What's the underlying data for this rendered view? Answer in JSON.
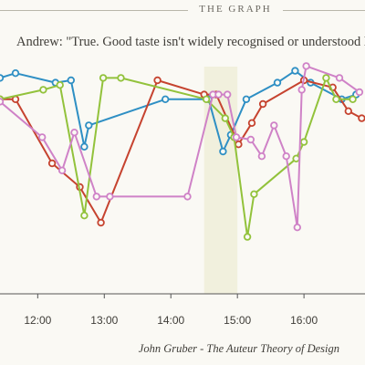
{
  "header": {
    "title": "THE GRAPH"
  },
  "quote": "Andrew: \"True. Good taste isn't widely recognised or understood ho",
  "caption": "John Gruber - The Auteur Theory of Design",
  "chart_data": {
    "type": "line",
    "x_unit": "time of day",
    "xlim": [
      "11:26",
      "16:55"
    ],
    "ylim": [
      0,
      100
    ],
    "x_ticks": [
      "12:00",
      "13:00",
      "14:00",
      "15:00",
      "16:00"
    ],
    "grid": false,
    "legend": "none",
    "highlight_band": {
      "from": "14:30",
      "to": "15:00",
      "color": "#f1f0dd"
    },
    "series": [
      {
        "color": "#2e8fc4",
        "points": [
          [
            "11:26",
            91
          ],
          [
            "11:40",
            93
          ],
          [
            "12:16",
            89
          ],
          [
            "12:30",
            90
          ],
          [
            "12:42",
            62
          ],
          [
            "12:46",
            71
          ],
          [
            "13:55",
            82
          ],
          [
            "14:34",
            82
          ],
          [
            "14:47",
            60
          ],
          [
            "14:54",
            67
          ],
          [
            "15:08",
            82
          ],
          [
            "15:36",
            89
          ],
          [
            "15:52",
            94
          ],
          [
            "16:06",
            89
          ],
          [
            "16:34",
            82
          ],
          [
            "16:47",
            84
          ]
        ]
      },
      {
        "color": "#c6432f",
        "points": [
          [
            "11:26",
            82
          ],
          [
            "11:40",
            82
          ],
          [
            "12:13",
            55
          ],
          [
            "12:38",
            45
          ],
          [
            "12:57",
            30
          ],
          [
            "13:48",
            90
          ],
          [
            "14:30",
            84
          ],
          [
            "14:41",
            84
          ],
          [
            "15:01",
            63
          ],
          [
            "15:13",
            72
          ],
          [
            "15:23",
            80
          ],
          [
            "16:00",
            90
          ],
          [
            "16:26",
            87
          ],
          [
            "16:40",
            77
          ],
          [
            "16:52",
            74
          ]
        ]
      },
      {
        "color": "#92c23b",
        "points": [
          [
            "11:26",
            82
          ],
          [
            "12:05",
            86
          ],
          [
            "12:20",
            88
          ],
          [
            "12:42",
            33
          ],
          [
            "12:59",
            91
          ],
          [
            "13:15",
            91
          ],
          [
            "14:32",
            82
          ],
          [
            "14:49",
            74
          ],
          [
            "14:57",
            66
          ],
          [
            "15:09",
            24
          ],
          [
            "15:15",
            42
          ],
          [
            "15:53",
            57
          ],
          [
            "16:00",
            64
          ],
          [
            "16:20",
            91
          ],
          [
            "16:29",
            82
          ],
          [
            "16:44",
            82
          ]
        ]
      },
      {
        "color": "#cf82c7",
        "points": [
          [
            "11:26",
            81
          ],
          [
            "12:04",
            66
          ],
          [
            "12:22",
            52
          ],
          [
            "12:33",
            68
          ],
          [
            "12:53",
            41
          ],
          [
            "13:05",
            41
          ],
          [
            "14:15",
            41
          ],
          [
            "14:38",
            84
          ],
          [
            "14:43",
            84
          ],
          [
            "14:51",
            84
          ],
          [
            "14:59",
            66
          ],
          [
            "15:12",
            65
          ],
          [
            "15:22",
            58
          ],
          [
            "15:33",
            71
          ],
          [
            "15:44",
            58
          ],
          [
            "15:54",
            28
          ],
          [
            "15:58",
            86
          ],
          [
            "16:02",
            96
          ],
          [
            "16:32",
            91
          ],
          [
            "16:50",
            85
          ]
        ]
      }
    ]
  }
}
